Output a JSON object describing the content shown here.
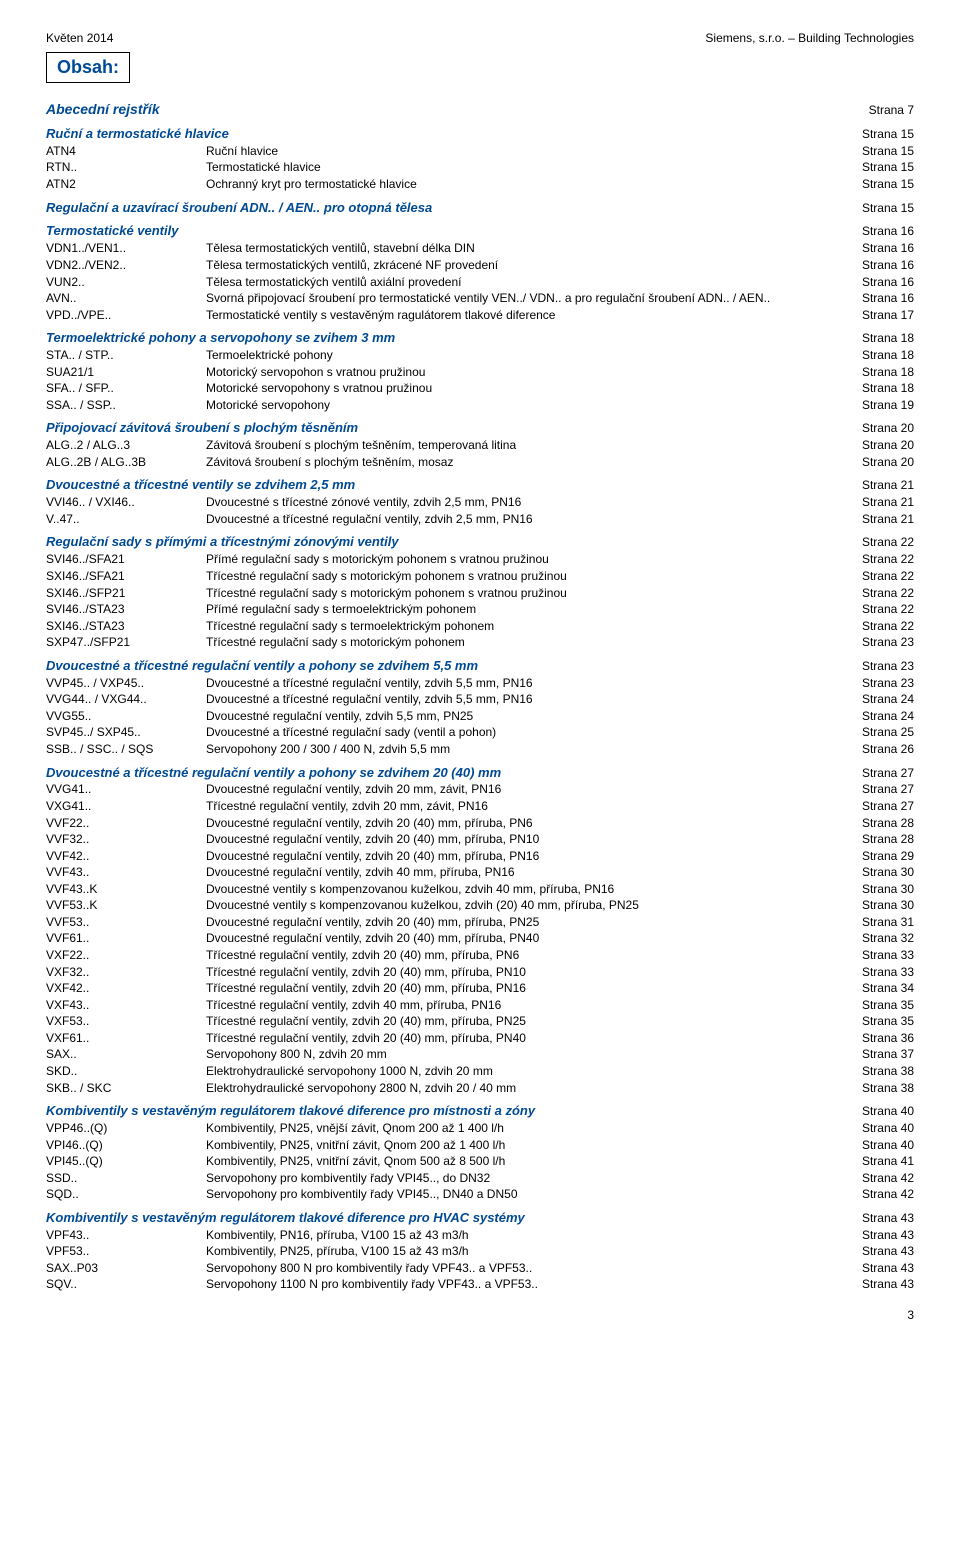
{
  "meta": {
    "top_left": "Květen 2014",
    "top_right": "Siemens, s.r.o. – Building Technologies",
    "obsah": "Obsah:",
    "page_number": "3",
    "strana_prefix": "Strana"
  },
  "abecedni": {
    "title": "Abecední rejstřík",
    "page": "7"
  },
  "sections": [
    {
      "title": "Ruční a termostatické hlavice",
      "page": "15",
      "rows": [
        {
          "code": "ATN4",
          "desc": "Ruční hlavice",
          "page": "15"
        },
        {
          "code": "RTN..",
          "desc": "Termostatické hlavice",
          "page": "15"
        },
        {
          "code": "ATN2",
          "desc": "Ochranný kryt pro termostatické hlavice",
          "page": "15"
        }
      ]
    },
    {
      "title": "Regulační a uzavírací šroubení ADN.. / AEN.. pro otopná tělesa",
      "page": "15",
      "rows": []
    },
    {
      "title": "Termostatické ventily",
      "page": "16",
      "rows": [
        {
          "code": "VDN1../VEN1..",
          "desc": "Tělesa termostatických ventilů, stavební délka DIN",
          "page": "16"
        },
        {
          "code": "VDN2../VEN2..",
          "desc": "Tělesa termostatických ventilů, zkrácené NF provedení",
          "page": "16"
        },
        {
          "code": "VUN2..",
          "desc": "Tělesa termostatických ventilů axiální provedení",
          "page": "16"
        },
        {
          "code": "AVN..",
          "desc": "Svorná připojovací šroubení pro termostatické ventily VEN../ VDN.. a pro regulační šroubení ADN.. / AEN..",
          "page": "16"
        },
        {
          "code": "VPD../VPE..",
          "desc": "Termostatické ventily s vestavěným ragulátorem tlakové diference",
          "page": "17"
        }
      ]
    },
    {
      "title": "Termoelektrické pohony a servopohony se zvihem 3 mm",
      "page": "18",
      "rows": [
        {
          "code": "STA.. / STP..",
          "desc": "Termoelektrické pohony",
          "page": "18"
        },
        {
          "code": "SUA21/1",
          "desc": "Motorický servopohon s vratnou pružinou",
          "page": "18"
        },
        {
          "code": "SFA.. / SFP..",
          "desc": "Motorické servopohony s vratnou pružinou",
          "page": "18"
        },
        {
          "code": "SSA.. / SSP..",
          "desc": "Motorické servopohony",
          "page": "19"
        }
      ]
    },
    {
      "title": "Připojovací závitová šroubení s plochým těsněním",
      "page": "20",
      "rows": [
        {
          "code": "ALG..2 / ALG..3",
          "desc": "Závitová šroubení s plochým tešněním, temperovaná litina",
          "page": "20"
        },
        {
          "code": "ALG..2B / ALG..3B",
          "desc": "Závitová šroubení s plochým tešněním, mosaz",
          "page": "20"
        }
      ]
    },
    {
      "title": "Dvoucestné a třícestné ventily se zdvihem 2,5 mm",
      "page": "21",
      "rows": [
        {
          "code": "VVI46.. / VXI46..",
          "desc": "Dvoucestné s třícestné zónové ventily, zdvih 2,5 mm, PN16",
          "page": "21"
        },
        {
          "code": "V..47..",
          "desc": "Dvoucestné a třícestné regulační ventily, zdvih 2,5 mm, PN16",
          "page": "21"
        }
      ]
    },
    {
      "title": "Regulační sady s přímými a třícestnými zónovými ventily",
      "page": "22",
      "rows": [
        {
          "code": "SVI46../SFA21",
          "desc": "Přímé regulační sady s motorickým pohonem s vratnou pružinou",
          "page": "22"
        },
        {
          "code": "SXI46../SFA21",
          "desc": "Třícestné regulační sady s motorickým pohonem s vratnou pružinou",
          "page": "22"
        },
        {
          "code": "SXI46../SFP21",
          "desc": "Třícestné regulační sady s motorickým pohonem s vratnou pružinou",
          "page": "22"
        },
        {
          "code": "SVI46../STA23",
          "desc": "Přímé regulační sady s termoelektrickým pohonem",
          "page": "22"
        },
        {
          "code": "SXI46../STA23",
          "desc": "Třícestné regulační sady s termoelektrickým pohonem",
          "page": "22"
        },
        {
          "code": "SXP47../SFP21",
          "desc": "Třícestné regulační sady s motorickým pohonem",
          "page": "23"
        }
      ]
    },
    {
      "title": "Dvoucestné a třícestné regulační ventily a pohony se zdvihem 5,5 mm",
      "page": "23",
      "rows": [
        {
          "code": "VVP45.. / VXP45..",
          "desc": "Dvoucestné a třícestné regulační ventily, zdvih 5,5 mm, PN16",
          "page": "23"
        },
        {
          "code": "VVG44.. / VXG44..",
          "desc": "Dvoucestné a třícestné regulační ventily, zdvih 5,5 mm, PN16",
          "page": "24"
        },
        {
          "code": "VVG55..",
          "desc": "Dvoucestné regulační ventily, zdvih 5,5 mm, PN25",
          "page": "24"
        },
        {
          "code": "SVP45../ SXP45..",
          "desc": "Dvoucestné a třícestné regulační sady (ventil a pohon)",
          "page": "25"
        },
        {
          "code": "SSB.. / SSC.. /  SQS",
          "desc": "Servopohony 200 / 300 / 400 N, zdvih 5,5 mm",
          "page": "26"
        }
      ]
    },
    {
      "title": "Dvoucestné a třícestné regulační ventily a pohony se zdvihem 20 (40) mm",
      "page": "27",
      "rows": [
        {
          "code": "VVG41..",
          "desc": "Dvoucestné regulační ventily, zdvih 20 mm, závit, PN16",
          "page": "27"
        },
        {
          "code": "VXG41..",
          "desc": "Třícestné regulační ventily, zdvih 20 mm, závit, PN16",
          "page": "27"
        },
        {
          "code": "VVF22..",
          "desc": "Dvoucestné regulační ventily, zdvih 20 (40) mm, příruba, PN6",
          "page": "28"
        },
        {
          "code": "VVF32..",
          "desc": "Dvoucestné regulační ventily, zdvih 20 (40) mm, příruba, PN10",
          "page": "28"
        },
        {
          "code": "VVF42..",
          "desc": "Dvoucestné regulační ventily, zdvih 20 (40) mm, příruba, PN16",
          "page": "29"
        },
        {
          "code": "VVF43..",
          "desc": "Dvoucestné regulační ventily, zdvih 40 mm, příruba, PN16",
          "page": "30"
        },
        {
          "code": "VVF43..K",
          "desc": "Dvoucestné ventily s kompenzovanou kuželkou, zdvih 40 mm, příruba, PN16",
          "page": "30"
        },
        {
          "code": "VVF53..K",
          "desc": "Dvoucestné ventily s kompenzovanou kuželkou, zdvih (20) 40 mm, příruba, PN25",
          "page": "30"
        },
        {
          "code": "VVF53..",
          "desc": "Dvoucestné regulační ventily, zdvih 20 (40) mm, příruba, PN25",
          "page": "31"
        },
        {
          "code": "VVF61..",
          "desc": "Dvoucestné regulační ventily, zdvih 20 (40) mm, příruba, PN40",
          "page": "32"
        },
        {
          "code": "VXF22..",
          "desc": "Třícestné regulační ventily, zdvih 20 (40) mm, příruba, PN6",
          "page": "33"
        },
        {
          "code": "VXF32..",
          "desc": "Třícestné regulační ventily, zdvih 20 (40) mm, příruba, PN10",
          "page": "33"
        },
        {
          "code": "VXF42..",
          "desc": "Třícestné regulační ventily, zdvih 20 (40) mm, příruba, PN16",
          "page": "34"
        },
        {
          "code": "VXF43..",
          "desc": "Třícestné regulační ventily, zdvih 40 mm, příruba, PN16",
          "page": "35"
        },
        {
          "code": "VXF53..",
          "desc": "Třícestné regulační ventily, zdvih 20 (40) mm, příruba, PN25",
          "page": "35"
        },
        {
          "code": "VXF61..",
          "desc": "Třícestné regulační ventily, zdvih 20 (40) mm, příruba, PN40",
          "page": "36"
        },
        {
          "code": "SAX..",
          "desc": "Servopohony 800 N, zdvih 20 mm",
          "page": "37"
        },
        {
          "code": "SKD..",
          "desc": "Elektrohydraulické servopohony 1000 N, zdvih 20 mm",
          "page": "38"
        },
        {
          "code": "SKB.. / SKC",
          "desc": "Elektrohydraulické servopohony 2800 N, zdvih 20 / 40 mm",
          "page": "38"
        }
      ]
    },
    {
      "title": "Kombiventily s vestavěným regulátorem tlakové diference pro místnosti a zóny",
      "page": "40",
      "rows": [
        {
          "code": "VPP46..(Q)",
          "desc": "Kombiventily, PN25, vnější závit, Qnom 200 až 1 400 l/h",
          "page": "40"
        },
        {
          "code": "VPI46..(Q)",
          "desc": "Kombiventily, PN25, vnitřní závit, Qnom 200 až 1 400 l/h",
          "page": "40"
        },
        {
          "code": "VPI45..(Q)",
          "desc": "Kombiventily, PN25, vnitřní závit, Qnom 500 až 8 500 l/h",
          "page": "41"
        },
        {
          "code": "SSD..",
          "desc": "Servopohony pro kombiventily řady VPI45.., do DN32",
          "page": "42"
        },
        {
          "code": "SQD..",
          "desc": "Servopohony pro kombiventily řady VPI45.., DN40 a DN50",
          "page": "42"
        }
      ]
    },
    {
      "title": "Kombiventily s vestavěným regulátorem tlakové diference pro HVAC systémy",
      "page": "43",
      "rows": [
        {
          "code": "VPF43..",
          "desc": "Kombiventily, PN16, příruba, V100 15 až 43 m3/h",
          "page": "43"
        },
        {
          "code": "VPF53..",
          "desc": "Kombiventily, PN25, příruba, V100 15 až 43 m3/h",
          "page": "43"
        },
        {
          "code": "SAX..P03",
          "desc": "Servopohony 800 N pro kombiventily řady VPF43.. a VPF53..",
          "page": "43"
        },
        {
          "code": "SQV..",
          "desc": "Servopohony 1100 N pro kombiventily řady VPF43.. a VPF53..",
          "page": "43"
        }
      ]
    }
  ]
}
